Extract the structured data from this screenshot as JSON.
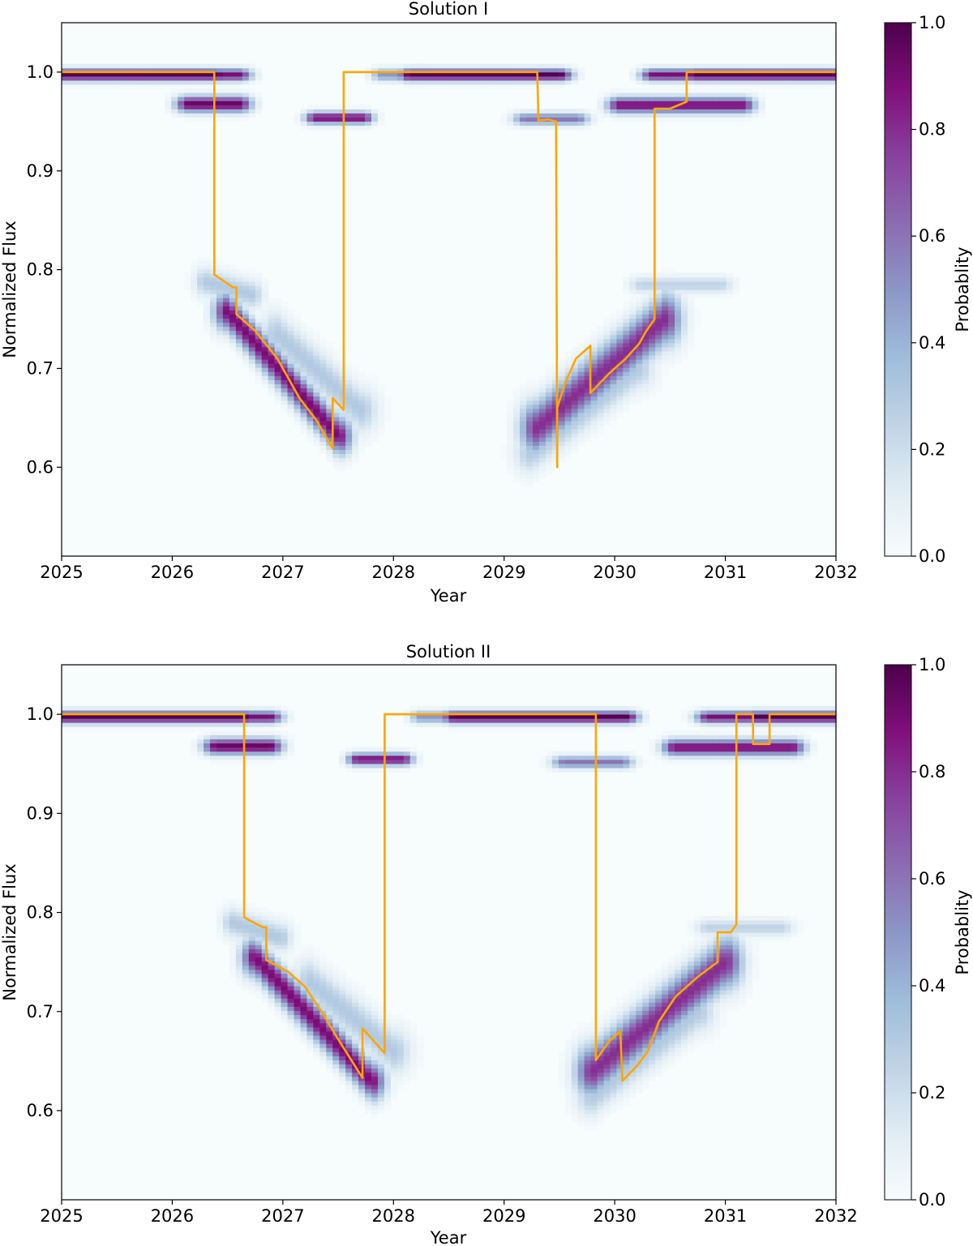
{
  "chart_data": [
    {
      "type": "heatmap",
      "title": "Solution I",
      "xlabel": "Year",
      "ylabel": "Normalized  Flux",
      "xlim": [
        2025,
        2032
      ],
      "ylim": [
        0.51,
        1.05
      ],
      "xticks": [
        2025,
        2026,
        2027,
        2028,
        2029,
        2030,
        2031,
        2032
      ],
      "xtick_labels": [
        "2025",
        "2026",
        "2027",
        "2028",
        "2029",
        "2030",
        "2031",
        "2032"
      ],
      "yticks": [
        0.6,
        0.7,
        0.8,
        0.9,
        1.0
      ],
      "ytick_labels": [
        "0.6",
        "0.7",
        "0.8",
        "0.9",
        "1.0"
      ],
      "colorbar": {
        "label": "Probablity",
        "range": [
          0,
          1
        ],
        "ticks": [
          0.0,
          0.2,
          0.4,
          0.6,
          0.8,
          1.0
        ],
        "tick_labels": [
          "0.0",
          "0.2",
          "0.4",
          "0.6",
          "0.8",
          "1.0"
        ],
        "colors": [
          "#f7fcfd",
          "#e0ecf4",
          "#bfd3e6",
          "#9ebcda",
          "#8c96c6",
          "#8c6bb1",
          "#88419d",
          "#810f7c",
          "#4d004b"
        ]
      },
      "line_color": "#ffa500",
      "density_bands": [
        {
          "x0": 2025.0,
          "x1": 2026.4,
          "y0": 0.9975,
          "y1": 0.9975,
          "p": 1.0,
          "w": 0.006,
          "fade": 0.12
        },
        {
          "x0": 2026.4,
          "x1": 2026.6,
          "y0": 0.9975,
          "y1": 0.9975,
          "p": 0.9,
          "w": 0.006,
          "fade": 0.12
        },
        {
          "x0": 2026.15,
          "x1": 2026.6,
          "y0": 0.968,
          "y1": 0.968,
          "p": 0.95,
          "w": 0.008,
          "fade": 0.12
        },
        {
          "x0": 2026.3,
          "x1": 2026.72,
          "y0": 0.788,
          "y1": 0.775,
          "p": 0.3,
          "w": 0.014,
          "fade": 0.1
        },
        {
          "x0": 2026.5,
          "x1": 2027.5,
          "y0": 0.758,
          "y1": 0.632,
          "p": 0.9,
          "w": 0.018,
          "fade": 0.12
        },
        {
          "x0": 2026.95,
          "x1": 2027.7,
          "y0": 0.735,
          "y1": 0.658,
          "p": 0.3,
          "w": 0.022,
          "fade": 0.15
        },
        {
          "x0": 2027.3,
          "x1": 2027.72,
          "y0": 0.954,
          "y1": 0.954,
          "p": 0.9,
          "w": 0.006,
          "fade": 0.1
        },
        {
          "x0": 2027.9,
          "x1": 2028.15,
          "y0": 0.9975,
          "y1": 0.9975,
          "p": 0.5,
          "w": 0.006,
          "fade": 0.1
        },
        {
          "x0": 2028.15,
          "x1": 2029.5,
          "y0": 0.9975,
          "y1": 0.9975,
          "p": 1.0,
          "w": 0.006,
          "fade": 0.12
        },
        {
          "x0": 2029.2,
          "x1": 2029.65,
          "y0": 0.953,
          "y1": 0.953,
          "p": 0.6,
          "w": 0.006,
          "fade": 0.12
        },
        {
          "x0": 2029.3,
          "x1": 2030.45,
          "y0": 0.64,
          "y1": 0.75,
          "p": 0.8,
          "w": 0.025,
          "fade": 0.15
        },
        {
          "x0": 2029.25,
          "x1": 2030.2,
          "y0": 0.615,
          "y1": 0.7,
          "p": 0.3,
          "w": 0.02,
          "fade": 0.15
        },
        {
          "x0": 2030.25,
          "x1": 2030.95,
          "y0": 0.785,
          "y1": 0.785,
          "p": 0.25,
          "w": 0.008,
          "fade": 0.12
        },
        {
          "x0": 2030.05,
          "x1": 2031.15,
          "y0": 0.967,
          "y1": 0.967,
          "p": 0.9,
          "w": 0.008,
          "fade": 0.12
        },
        {
          "x0": 2030.35,
          "x1": 2030.75,
          "y0": 0.9975,
          "y1": 0.9975,
          "p": 0.9,
          "w": 0.006,
          "fade": 0.12
        },
        {
          "x0": 2030.75,
          "x1": 2032.0,
          "y0": 0.9975,
          "y1": 0.9975,
          "p": 1.0,
          "w": 0.006,
          "fade": 0.1
        }
      ],
      "line": [
        [
          2025.0,
          1.0
        ],
        [
          2026.38,
          1.0
        ],
        [
          2026.38,
          0.795
        ],
        [
          2026.55,
          0.782
        ],
        [
          2026.58,
          0.782
        ],
        [
          2026.58,
          0.755
        ],
        [
          2026.75,
          0.738
        ],
        [
          2026.95,
          0.71
        ],
        [
          2027.15,
          0.67
        ],
        [
          2027.3,
          0.648
        ],
        [
          2027.45,
          0.619
        ],
        [
          2027.45,
          0.67
        ],
        [
          2027.55,
          0.658
        ],
        [
          2027.55,
          1.0
        ],
        [
          2029.3,
          1.0
        ],
        [
          2029.31,
          0.951
        ],
        [
          2029.4,
          0.952
        ],
        [
          2029.47,
          0.95
        ],
        [
          2029.48,
          0.6
        ],
        [
          2029.48,
          0.66
        ],
        [
          2029.55,
          0.685
        ],
        [
          2029.65,
          0.71
        ],
        [
          2029.78,
          0.723
        ],
        [
          2029.78,
          0.675
        ],
        [
          2029.95,
          0.695
        ],
        [
          2030.1,
          0.71
        ],
        [
          2030.22,
          0.725
        ],
        [
          2030.28,
          0.737
        ],
        [
          2030.36,
          0.75
        ],
        [
          2030.36,
          0.963
        ],
        [
          2030.5,
          0.963
        ],
        [
          2030.65,
          0.97
        ],
        [
          2030.65,
          1.0
        ],
        [
          2032.0,
          1.0
        ]
      ]
    },
    {
      "type": "heatmap",
      "title": "Solution II",
      "xlabel": "Year",
      "ylabel": "Normalized  Flux",
      "xlim": [
        2025,
        2032
      ],
      "ylim": [
        0.51,
        1.05
      ],
      "xticks": [
        2025,
        2026,
        2027,
        2028,
        2029,
        2030,
        2031,
        2032
      ],
      "xtick_labels": [
        "2025",
        "2026",
        "2027",
        "2028",
        "2029",
        "2030",
        "2031",
        "2032"
      ],
      "yticks": [
        0.6,
        0.7,
        0.8,
        0.9,
        1.0
      ],
      "ytick_labels": [
        "0.6",
        "0.7",
        "0.8",
        "0.9",
        "1.0"
      ],
      "colorbar": {
        "label": "Probablity",
        "range": [
          0,
          1
        ],
        "ticks": [
          0.0,
          0.2,
          0.4,
          0.6,
          0.8,
          1.0
        ],
        "tick_labels": [
          "0.0",
          "0.2",
          "0.4",
          "0.6",
          "0.8",
          "1.0"
        ],
        "colors": [
          "#f7fcfd",
          "#e0ecf4",
          "#bfd3e6",
          "#9ebcda",
          "#8c96c6",
          "#8c6bb1",
          "#88419d",
          "#810f7c",
          "#4d004b"
        ]
      },
      "line_color": "#ffa500",
      "density_bands": [
        {
          "x0": 2025.0,
          "x1": 2026.65,
          "y0": 0.9975,
          "y1": 0.9975,
          "p": 1.0,
          "w": 0.006,
          "fade": 0.12
        },
        {
          "x0": 2026.65,
          "x1": 2026.88,
          "y0": 0.9975,
          "y1": 0.9975,
          "p": 0.9,
          "w": 0.006,
          "fade": 0.12
        },
        {
          "x0": 2026.4,
          "x1": 2026.88,
          "y0": 0.968,
          "y1": 0.968,
          "p": 0.95,
          "w": 0.008,
          "fade": 0.12
        },
        {
          "x0": 2026.55,
          "x1": 2026.98,
          "y0": 0.79,
          "y1": 0.775,
          "p": 0.3,
          "w": 0.014,
          "fade": 0.1
        },
        {
          "x0": 2026.75,
          "x1": 2027.8,
          "y0": 0.755,
          "y1": 0.63,
          "p": 0.9,
          "w": 0.018,
          "fade": 0.12
        },
        {
          "x0": 2027.25,
          "x1": 2028.0,
          "y0": 0.73,
          "y1": 0.66,
          "p": 0.3,
          "w": 0.022,
          "fade": 0.15
        },
        {
          "x0": 2027.68,
          "x1": 2028.08,
          "y0": 0.955,
          "y1": 0.955,
          "p": 0.9,
          "w": 0.006,
          "fade": 0.1
        },
        {
          "x0": 2028.25,
          "x1": 2028.55,
          "y0": 0.9975,
          "y1": 0.9975,
          "p": 0.5,
          "w": 0.006,
          "fade": 0.1
        },
        {
          "x0": 2028.55,
          "x1": 2030.1,
          "y0": 0.9975,
          "y1": 0.9975,
          "p": 1.0,
          "w": 0.006,
          "fade": 0.12
        },
        {
          "x0": 2029.55,
          "x1": 2030.05,
          "y0": 0.952,
          "y1": 0.952,
          "p": 0.6,
          "w": 0.006,
          "fade": 0.12
        },
        {
          "x0": 2029.8,
          "x1": 2031.0,
          "y0": 0.64,
          "y1": 0.75,
          "p": 0.8,
          "w": 0.025,
          "fade": 0.15
        },
        {
          "x0": 2029.8,
          "x1": 2030.75,
          "y0": 0.615,
          "y1": 0.7,
          "p": 0.3,
          "w": 0.02,
          "fade": 0.15
        },
        {
          "x0": 2030.85,
          "x1": 2031.5,
          "y0": 0.785,
          "y1": 0.785,
          "p": 0.25,
          "w": 0.008,
          "fade": 0.12
        },
        {
          "x0": 2030.55,
          "x1": 2031.6,
          "y0": 0.967,
          "y1": 0.967,
          "p": 0.9,
          "w": 0.008,
          "fade": 0.12
        },
        {
          "x0": 2030.85,
          "x1": 2031.25,
          "y0": 0.9975,
          "y1": 0.9975,
          "p": 0.9,
          "w": 0.006,
          "fade": 0.12
        },
        {
          "x0": 2031.25,
          "x1": 2032.0,
          "y0": 0.9975,
          "y1": 0.9975,
          "p": 1.0,
          "w": 0.006,
          "fade": 0.1
        }
      ],
      "line": [
        [
          2025.0,
          1.0
        ],
        [
          2026.65,
          1.0
        ],
        [
          2026.65,
          0.795
        ],
        [
          2026.82,
          0.785
        ],
        [
          2026.85,
          0.785
        ],
        [
          2026.85,
          0.752
        ],
        [
          2027.05,
          0.74
        ],
        [
          2027.2,
          0.725
        ],
        [
          2027.35,
          0.7
        ],
        [
          2027.5,
          0.672
        ],
        [
          2027.72,
          0.633
        ],
        [
          2027.72,
          0.683
        ],
        [
          2027.92,
          0.658
        ],
        [
          2027.92,
          1.0
        ],
        [
          2029.83,
          1.0
        ],
        [
          2029.83,
          0.651
        ],
        [
          2029.95,
          0.67
        ],
        [
          2030.05,
          0.68
        ],
        [
          2030.07,
          0.63
        ],
        [
          2030.2,
          0.645
        ],
        [
          2030.3,
          0.66
        ],
        [
          2030.4,
          0.69
        ],
        [
          2030.55,
          0.715
        ],
        [
          2030.75,
          0.735
        ],
        [
          2030.93,
          0.75
        ],
        [
          2030.93,
          0.78
        ],
        [
          2031.05,
          0.78
        ],
        [
          2031.1,
          0.788
        ],
        [
          2031.1,
          1.0
        ],
        [
          2031.25,
          1.0
        ],
        [
          2031.25,
          0.97
        ],
        [
          2031.4,
          0.97
        ],
        [
          2031.4,
          1.0
        ],
        [
          2032.0,
          1.0
        ]
      ]
    }
  ]
}
